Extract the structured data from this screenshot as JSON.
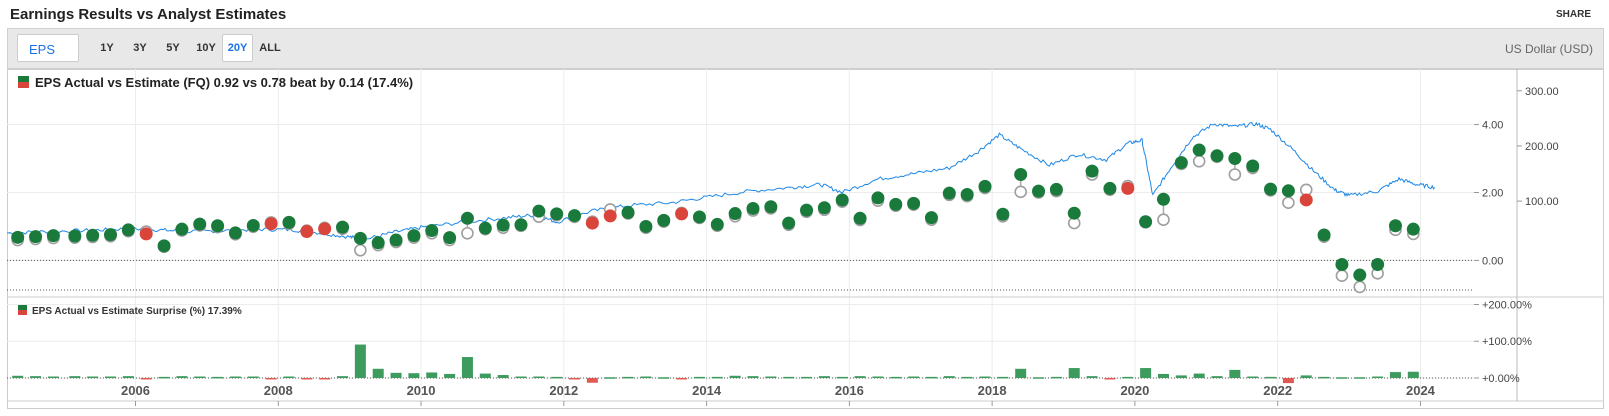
{
  "header": {
    "title": "Earnings Results vs Analyst Estimates",
    "share_label": "SHARE"
  },
  "toolbar": {
    "metric": "EPS",
    "ranges": [
      "1Y",
      "3Y",
      "5Y",
      "10Y",
      "20Y",
      "ALL"
    ],
    "active_range": "20Y",
    "currency": "US Dollar (USD)"
  },
  "legend": {
    "main": "EPS Actual vs Estimate (FQ) 0.92 vs 0.78 beat by 0.14 (17.4%)",
    "surprise": "EPS Actual vs Estimate Surprise (%) 17.39%"
  },
  "colors": {
    "beat": "#1a7a3c",
    "miss": "#d9453b",
    "estimate": "#9e9e9e",
    "price": "#1e88e5",
    "surprise_pos": "#3d9b5e",
    "surprise_neg": "#e05a52"
  },
  "chart_data": [
    {
      "type": "scatter",
      "name": "eps-panel",
      "xlim": [
        2004.2,
        2024.75
      ],
      "ylim": [
        -0.9,
        5.4
      ],
      "y_ticks": [
        "4.00",
        "2.00",
        "0.00"
      ],
      "y_tick_values": [
        4,
        2,
        0
      ],
      "y2_ticks": [
        "300.00",
        "200.00",
        "100.00"
      ],
      "y2_tick_values": [
        300,
        200,
        100
      ],
      "y2lim": [
        -63,
        325
      ],
      "x_ticks": [
        "2006",
        "2008",
        "2010",
        "2012",
        "2014",
        "2016",
        "2018",
        "2020",
        "2022",
        "2024"
      ],
      "x_tick_values": [
        2006,
        2008,
        2010,
        2012,
        2014,
        2016,
        2018,
        2020,
        2022,
        2024
      ],
      "quarters": [
        {
          "x": 2004.35,
          "a": 0.68,
          "e": 0.6
        },
        {
          "x": 2004.6,
          "a": 0.7,
          "e": 0.63
        },
        {
          "x": 2004.85,
          "a": 0.73,
          "e": 0.66
        },
        {
          "x": 2005.15,
          "a": 0.72,
          "e": 0.67
        },
        {
          "x": 2005.4,
          "a": 0.74,
          "e": 0.69
        },
        {
          "x": 2005.65,
          "a": 0.76,
          "e": 0.71
        },
        {
          "x": 2005.9,
          "a": 0.9,
          "e": 0.86
        },
        {
          "x": 2006.15,
          "a": 0.78,
          "e": 0.85
        },
        {
          "x": 2006.4,
          "a": 0.43,
          "e": 0.4
        },
        {
          "x": 2006.65,
          "a": 0.92,
          "e": 0.88
        },
        {
          "x": 2006.9,
          "a": 1.07,
          "e": 1.03
        },
        {
          "x": 2007.15,
          "a": 1.02,
          "e": 0.98
        },
        {
          "x": 2007.4,
          "a": 0.81,
          "e": 0.77
        },
        {
          "x": 2007.65,
          "a": 1.03,
          "e": 0.99
        },
        {
          "x": 2007.9,
          "a": 1.08,
          "e": 1.12
        },
        {
          "x": 2008.15,
          "a": 1.12,
          "e": 1.08
        },
        {
          "x": 2008.4,
          "a": 0.85,
          "e": 0.88
        },
        {
          "x": 2008.65,
          "a": 0.93,
          "e": 0.96
        },
        {
          "x": 2008.9,
          "a": 0.98,
          "e": 0.93
        },
        {
          "x": 2009.15,
          "a": 0.65,
          "e": 0.3
        },
        {
          "x": 2009.4,
          "a": 0.52,
          "e": 0.45
        },
        {
          "x": 2009.65,
          "a": 0.6,
          "e": 0.54
        },
        {
          "x": 2009.9,
          "a": 0.73,
          "e": 0.67
        },
        {
          "x": 2010.15,
          "a": 0.88,
          "e": 0.8
        },
        {
          "x": 2010.4,
          "a": 0.67,
          "e": 0.6
        },
        {
          "x": 2010.65,
          "a": 1.24,
          "e": 0.8
        },
        {
          "x": 2010.9,
          "a": 0.95,
          "e": 0.92
        },
        {
          "x": 2011.15,
          "a": 1.04,
          "e": 0.96
        },
        {
          "x": 2011.4,
          "a": 1.05,
          "e": 1.02
        },
        {
          "x": 2011.65,
          "a": 1.45,
          "e": 1.29
        },
        {
          "x": 2011.9,
          "a": 1.37,
          "e": 1.33
        },
        {
          "x": 2012.15,
          "a": 1.32,
          "e": 1.28
        },
        {
          "x": 2012.4,
          "a": 1.1,
          "e": 1.14
        },
        {
          "x": 2012.65,
          "a": 1.31,
          "e": 1.5
        },
        {
          "x": 2012.9,
          "a": 1.41,
          "e": 1.38
        },
        {
          "x": 2013.15,
          "a": 1.0,
          "e": 0.96
        },
        {
          "x": 2013.4,
          "a": 1.18,
          "e": 1.14
        },
        {
          "x": 2013.65,
          "a": 1.37,
          "e": 1.4
        },
        {
          "x": 2013.9,
          "a": 1.28,
          "e": 1.25
        },
        {
          "x": 2014.15,
          "a": 1.06,
          "e": 1.02
        },
        {
          "x": 2014.4,
          "a": 1.38,
          "e": 1.3
        },
        {
          "x": 2014.65,
          "a": 1.53,
          "e": 1.47
        },
        {
          "x": 2014.9,
          "a": 1.58,
          "e": 1.53
        },
        {
          "x": 2015.15,
          "a": 1.1,
          "e": 1.05
        },
        {
          "x": 2015.4,
          "a": 1.48,
          "e": 1.43
        },
        {
          "x": 2015.65,
          "a": 1.55,
          "e": 1.49
        },
        {
          "x": 2015.9,
          "a": 1.78,
          "e": 1.73
        },
        {
          "x": 2016.15,
          "a": 1.24,
          "e": 1.19
        },
        {
          "x": 2016.4,
          "a": 1.84,
          "e": 1.76
        },
        {
          "x": 2016.65,
          "a": 1.65,
          "e": 1.61
        },
        {
          "x": 2016.9,
          "a": 1.68,
          "e": 1.64
        },
        {
          "x": 2017.15,
          "a": 1.26,
          "e": 1.2
        },
        {
          "x": 2017.4,
          "a": 1.98,
          "e": 1.93
        },
        {
          "x": 2017.65,
          "a": 1.94,
          "e": 1.89
        },
        {
          "x": 2017.9,
          "a": 2.18,
          "e": 2.13
        },
        {
          "x": 2018.15,
          "a": 1.36,
          "e": 1.3
        },
        {
          "x": 2018.4,
          "a": 2.53,
          "e": 2.02
        },
        {
          "x": 2018.65,
          "a": 2.04,
          "e": 2.0
        },
        {
          "x": 2018.9,
          "a": 2.09,
          "e": 2.04
        },
        {
          "x": 2019.15,
          "a": 1.39,
          "e": 1.1
        },
        {
          "x": 2019.4,
          "a": 2.63,
          "e": 2.53
        },
        {
          "x": 2019.65,
          "a": 2.12,
          "e": 2.08
        },
        {
          "x": 2019.9,
          "a": 2.12,
          "e": 2.19
        },
        {
          "x": 2020.15,
          "a": 1.14,
          "e": 1.12
        },
        {
          "x": 2020.4,
          "a": 1.8,
          "e": 1.2
        },
        {
          "x": 2020.65,
          "a": 2.88,
          "e": 2.84
        },
        {
          "x": 2020.9,
          "a": 3.25,
          "e": 2.92
        },
        {
          "x": 2021.15,
          "a": 3.08,
          "e": 3.05
        },
        {
          "x": 2021.4,
          "a": 3.0,
          "e": 2.53
        },
        {
          "x": 2021.65,
          "a": 2.78,
          "e": 2.72
        },
        {
          "x": 2021.9,
          "a": 2.1,
          "e": 2.06
        },
        {
          "x": 2022.15,
          "a": 2.05,
          "e": 1.7
        },
        {
          "x": 2022.4,
          "a": 1.78,
          "e": 2.08
        },
        {
          "x": 2022.65,
          "a": 0.75,
          "e": 0.7
        },
        {
          "x": 2022.9,
          "a": -0.12,
          "e": -0.45
        },
        {
          "x": 2023.15,
          "a": -0.43,
          "e": -0.78
        },
        {
          "x": 2023.4,
          "a": -0.12,
          "e": -0.38
        },
        {
          "x": 2023.65,
          "a": 1.02,
          "e": 0.9
        },
        {
          "x": 2023.9,
          "a": 0.92,
          "e": 0.78
        }
      ],
      "price": [
        [
          2004.2,
          42
        ],
        [
          2004.8,
          45
        ],
        [
          2005.4,
          47
        ],
        [
          2005.9,
          50
        ],
        [
          2006.3,
          48
        ],
        [
          2006.7,
          45
        ],
        [
          2007.2,
          46
        ],
        [
          2007.7,
          49
        ],
        [
          2008.2,
          48
        ],
        [
          2008.6,
          42
        ],
        [
          2009.0,
          35
        ],
        [
          2009.2,
          30
        ],
        [
          2009.6,
          43
        ],
        [
          2010.0,
          52
        ],
        [
          2010.6,
          62
        ],
        [
          2011.2,
          70
        ],
        [
          2011.6,
          75
        ],
        [
          2011.9,
          62
        ],
        [
          2012.4,
          82
        ],
        [
          2012.9,
          92
        ],
        [
          2013.5,
          97
        ],
        [
          2014.0,
          107
        ],
        [
          2014.6,
          118
        ],
        [
          2015.2,
          125
        ],
        [
          2015.6,
          130
        ],
        [
          2015.9,
          116
        ],
        [
          2016.4,
          140
        ],
        [
          2016.9,
          150
        ],
        [
          2017.4,
          160
        ],
        [
          2017.8,
          190
        ],
        [
          2018.1,
          220
        ],
        [
          2018.4,
          195
        ],
        [
          2018.8,
          165
        ],
        [
          2019.2,
          185
        ],
        [
          2019.6,
          175
        ],
        [
          2019.9,
          205
        ],
        [
          2020.1,
          210
        ],
        [
          2020.25,
          110
        ],
        [
          2020.5,
          160
        ],
        [
          2020.8,
          215
        ],
        [
          2021.1,
          240
        ],
        [
          2021.4,
          235
        ],
        [
          2021.7,
          240
        ],
        [
          2021.9,
          230
        ],
        [
          2022.2,
          195
        ],
        [
          2022.5,
          155
        ],
        [
          2022.8,
          120
        ],
        [
          2023.0,
          110
        ],
        [
          2023.4,
          118
        ],
        [
          2023.7,
          140
        ],
        [
          2023.95,
          130
        ],
        [
          2024.2,
          125
        ]
      ]
    },
    {
      "type": "bar",
      "name": "surprise-panel",
      "ylim": [
        -30,
        215
      ],
      "y_ticks": [
        "+200.00%",
        "+100.00%",
        "+0.00%"
      ],
      "y_tick_values": [
        200,
        100,
        0
      ],
      "surprise_pct": [
        6,
        5,
        4,
        5,
        4,
        4,
        5,
        -4,
        3,
        5,
        4,
        3,
        4,
        4,
        -4,
        4,
        -3,
        -3,
        5,
        91,
        25,
        14,
        13,
        15,
        11,
        57,
        12,
        8,
        4,
        4,
        3,
        -4,
        -13,
        2,
        3,
        4,
        2,
        -2,
        3,
        3,
        6,
        5,
        4,
        3,
        3,
        5,
        3,
        5,
        4,
        3,
        4,
        3,
        5,
        3,
        4,
        3,
        25,
        2,
        3,
        27,
        5,
        -3,
        3,
        27,
        11,
        7,
        12,
        5,
        22,
        4,
        3,
        -14,
        7,
        3,
        2,
        2,
        4,
        16,
        17
      ]
    }
  ]
}
